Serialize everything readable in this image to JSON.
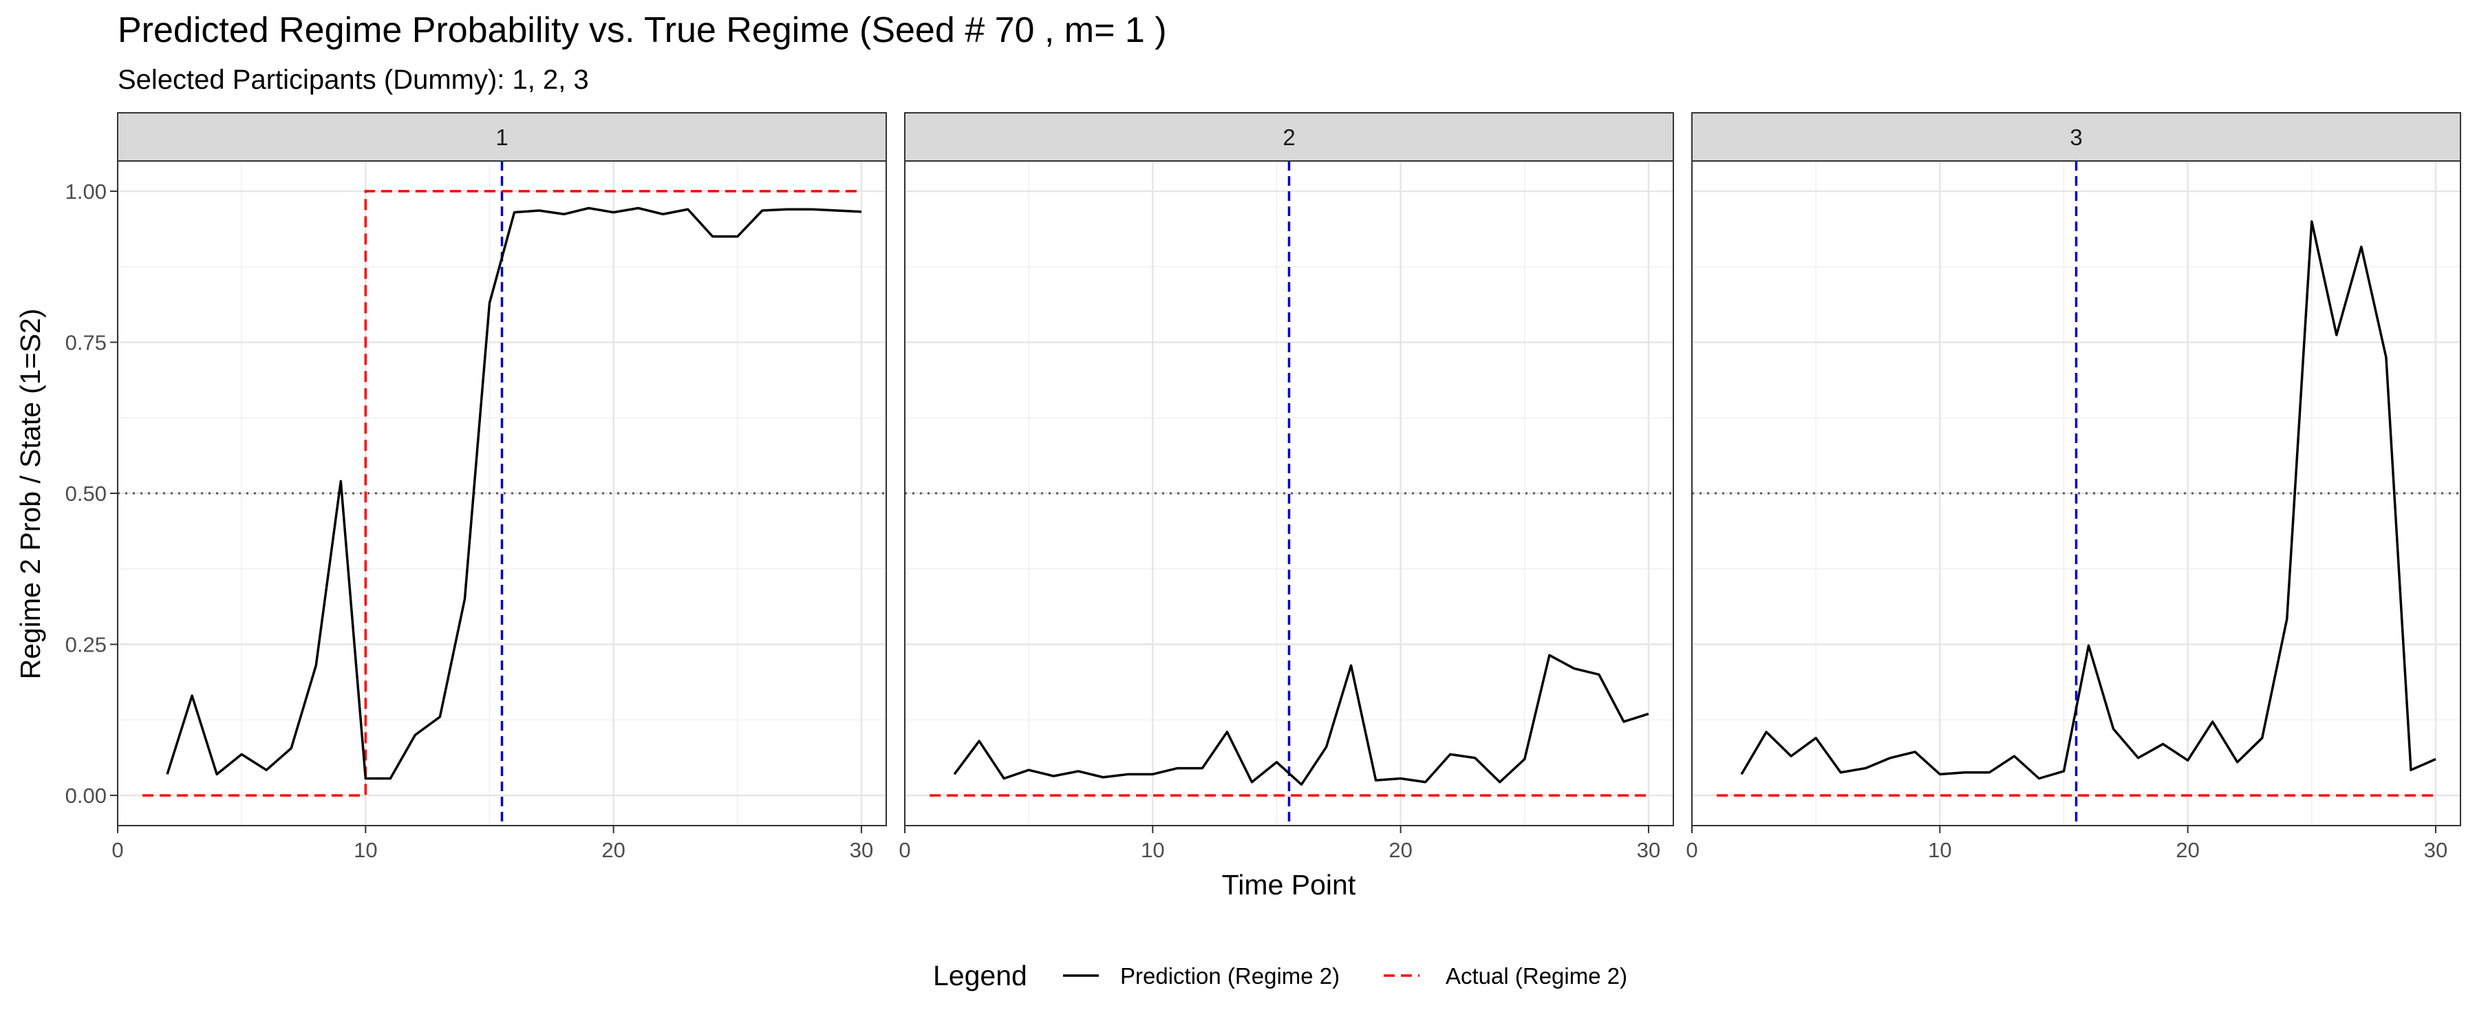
{
  "chart_data": {
    "type": "line",
    "title": "Predicted Regime Probability vs. True Regime (Seed # 70 , m= 1 )",
    "subtitle": "Selected Participants (Dummy): 1, 2, 3",
    "xlabel": "Time Point",
    "ylabel": "Regime 2 Prob / State (1=S2)",
    "xlim": [
      0,
      31
    ],
    "ylim": [
      -0.05,
      1.05
    ],
    "x_ticks": [
      0,
      10,
      20,
      30
    ],
    "y_ticks": [
      0.0,
      0.25,
      0.5,
      0.75,
      1.0
    ],
    "y_tick_labels": [
      "0.00",
      "0.25",
      "0.50",
      "0.75",
      "1.00"
    ],
    "grid": true,
    "reference_lines": {
      "horizontal": {
        "y": 0.5,
        "style": "dotted",
        "color": "#555555"
      },
      "vertical": {
        "x": 15.5,
        "style": "dashed",
        "color": "#0000cd"
      }
    },
    "legend": {
      "title": "Legend",
      "position": "bottom",
      "entries": [
        {
          "label": "Prediction (Regime 2)",
          "color": "#000000",
          "style": "solid"
        },
        {
          "label": "Actual (Regime 2)",
          "color": "#ff0000",
          "style": "dashed"
        }
      ]
    },
    "panels": [
      {
        "label": "1",
        "prediction": {
          "x": [
            2,
            3,
            4,
            5,
            6,
            7,
            8,
            9,
            10,
            11,
            12,
            13,
            14,
            15,
            16,
            17,
            18,
            19,
            20,
            21,
            22,
            23,
            24,
            25,
            26,
            27,
            28,
            29,
            30
          ],
          "y": [
            0.035,
            0.165,
            0.035,
            0.068,
            0.042,
            0.078,
            0.215,
            0.52,
            0.028,
            0.028,
            0.1,
            0.13,
            0.325,
            0.815,
            0.965,
            0.968,
            0.962,
            0.972,
            0.965,
            0.972,
            0.962,
            0.97,
            0.925,
            0.925,
            0.968,
            0.97,
            0.97,
            0.968,
            0.966
          ]
        },
        "actual": {
          "x": [
            1,
            2,
            3,
            4,
            5,
            6,
            7,
            8,
            9,
            10,
            11,
            12,
            13,
            14,
            15,
            16,
            17,
            18,
            19,
            20,
            21,
            22,
            23,
            24,
            25,
            26,
            27,
            28,
            29,
            30
          ],
          "y": [
            0,
            0,
            0,
            0,
            0,
            0,
            0,
            0,
            0,
            1,
            1,
            1,
            1,
            1,
            1,
            1,
            1,
            1,
            1,
            1,
            1,
            1,
            1,
            1,
            1,
            1,
            1,
            1,
            1,
            1
          ]
        }
      },
      {
        "label": "2",
        "prediction": {
          "x": [
            2,
            3,
            4,
            5,
            6,
            7,
            8,
            9,
            10,
            11,
            12,
            13,
            14,
            15,
            16,
            17,
            18,
            19,
            20,
            21,
            22,
            23,
            24,
            25,
            26,
            27,
            28,
            29,
            30
          ],
          "y": [
            0.035,
            0.09,
            0.028,
            0.042,
            0.032,
            0.04,
            0.03,
            0.035,
            0.035,
            0.045,
            0.045,
            0.105,
            0.022,
            0.055,
            0.018,
            0.08,
            0.215,
            0.025,
            0.028,
            0.022,
            0.068,
            0.062,
            0.022,
            0.06,
            0.232,
            0.21,
            0.2,
            0.122,
            0.135
          ]
        },
        "actual": {
          "x": [
            1,
            2,
            3,
            4,
            5,
            6,
            7,
            8,
            9,
            10,
            11,
            12,
            13,
            14,
            15,
            16,
            17,
            18,
            19,
            20,
            21,
            22,
            23,
            24,
            25,
            26,
            27,
            28,
            29,
            30
          ],
          "y": [
            0,
            0,
            0,
            0,
            0,
            0,
            0,
            0,
            0,
            0,
            0,
            0,
            0,
            0,
            0,
            0,
            0,
            0,
            0,
            0,
            0,
            0,
            0,
            0,
            0,
            0,
            0,
            0,
            0,
            0
          ]
        }
      },
      {
        "label": "3",
        "prediction": {
          "x": [
            2,
            3,
            4,
            5,
            6,
            7,
            8,
            9,
            10,
            11,
            12,
            13,
            14,
            15,
            16,
            17,
            18,
            19,
            20,
            21,
            22,
            23,
            24,
            25,
            26,
            27,
            28,
            29,
            30
          ],
          "y": [
            0.035,
            0.105,
            0.065,
            0.095,
            0.038,
            0.045,
            0.062,
            0.072,
            0.035,
            0.038,
            0.038,
            0.065,
            0.028,
            0.04,
            0.248,
            0.11,
            0.062,
            0.085,
            0.058,
            0.122,
            0.055,
            0.095,
            0.292,
            0.95,
            0.762,
            0.908,
            0.725,
            0.042,
            0.06
          ]
        },
        "actual": {
          "x": [
            1,
            2,
            3,
            4,
            5,
            6,
            7,
            8,
            9,
            10,
            11,
            12,
            13,
            14,
            15,
            16,
            17,
            18,
            19,
            20,
            21,
            22,
            23,
            24,
            25,
            26,
            27,
            28,
            29,
            30
          ],
          "y": [
            0,
            0,
            0,
            0,
            0,
            0,
            0,
            0,
            0,
            0,
            0,
            0,
            0,
            0,
            0,
            0,
            0,
            0,
            0,
            0,
            0,
            0,
            0,
            0,
            0,
            0,
            0,
            0,
            0,
            0
          ]
        }
      }
    ]
  }
}
